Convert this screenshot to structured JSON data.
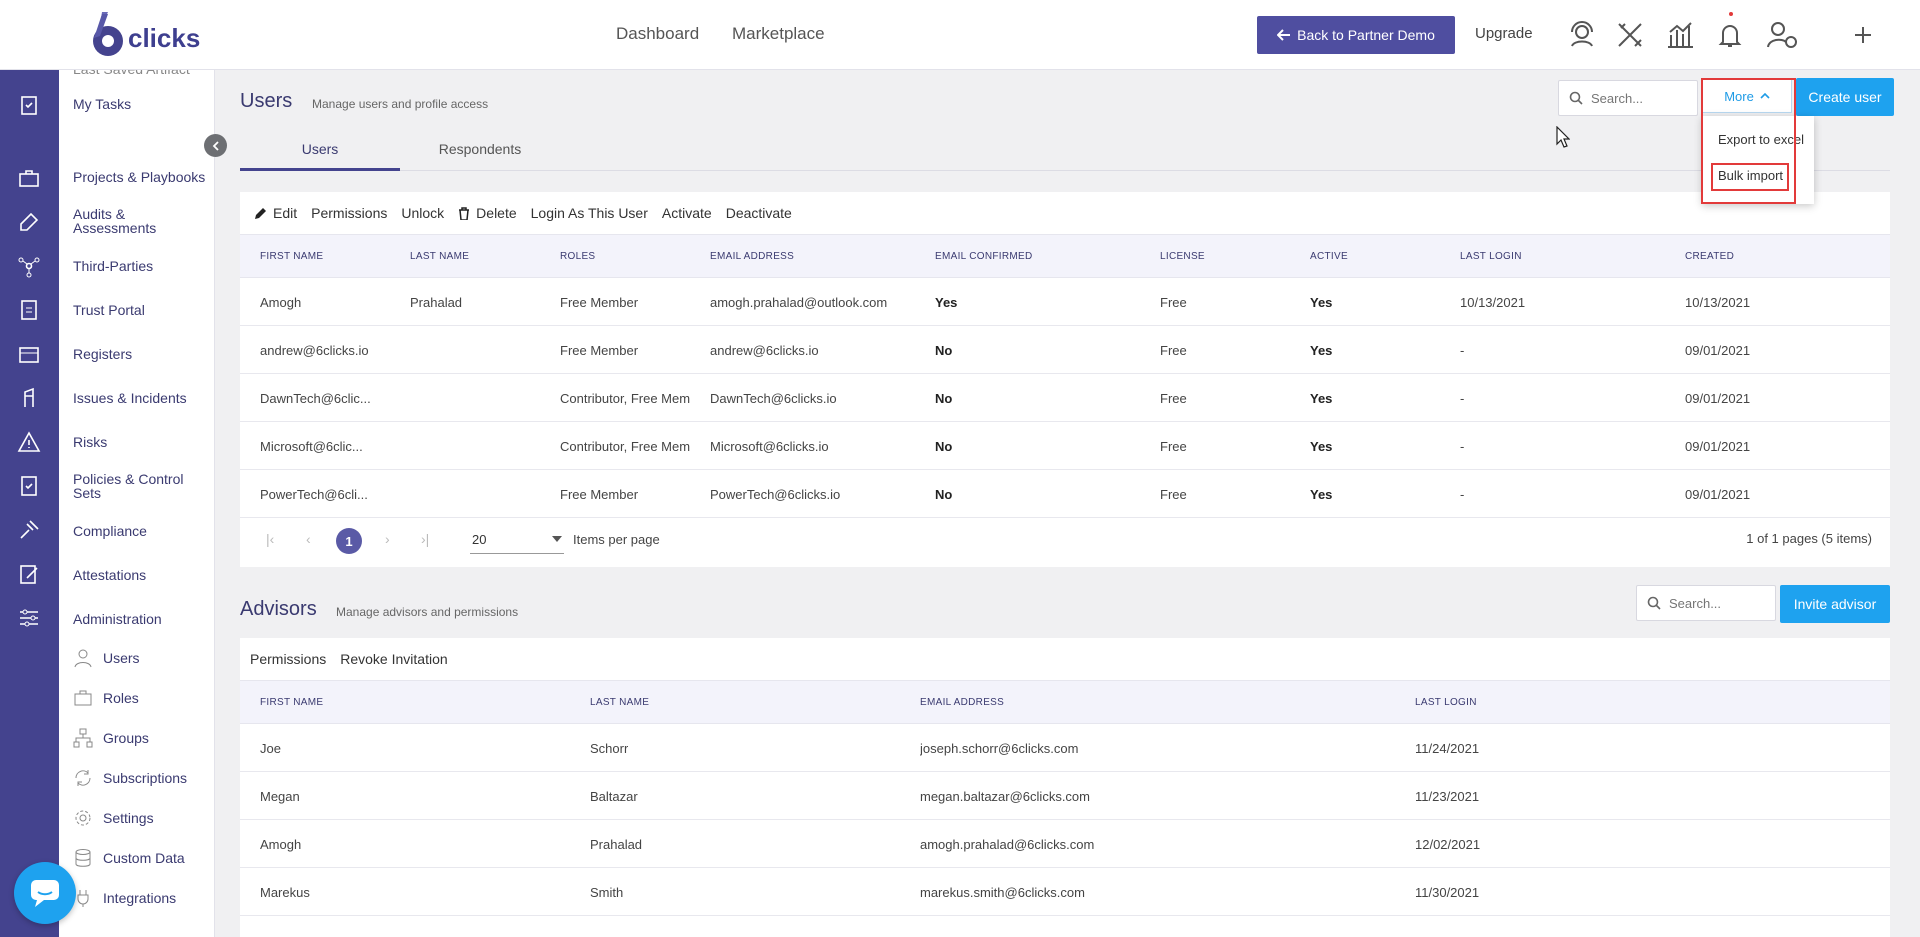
{
  "brand": {
    "name": "clicks",
    "accent": "#44438e",
    "primary": "#1ea2ef",
    "highlight": "#e23a3a"
  },
  "topnav": {
    "dashboard": "Dashboard",
    "marketplace": "Marketplace",
    "back_button": "Back to Partner Demo",
    "upgrade": "Upgrade"
  },
  "sidebar": {
    "cut_item": "Last Saved Artifact",
    "items": [
      "My Tasks",
      "Projects & Playbooks",
      "Audits & Assessments",
      "Third-Parties",
      "Trust Portal",
      "Registers",
      "Issues & Incidents",
      "Risks",
      "Policies & Control Sets",
      "Compliance",
      "Attestations",
      "Administration"
    ],
    "subitems": [
      "Users",
      "Roles",
      "Groups",
      "Subscriptions",
      "Settings",
      "Custom Data",
      "Integrations"
    ]
  },
  "users_section": {
    "title": "Users",
    "subtitle": "Manage users and profile access",
    "search_placeholder": "Search...",
    "more_label": "More",
    "create_label": "Create user",
    "more_menu": [
      "Export to excel",
      "Bulk import"
    ],
    "tabs": [
      "Users",
      "Respondents"
    ],
    "toolbar": [
      "Edit",
      "Permissions",
      "Unlock",
      "Delete",
      "Login As This User",
      "Activate",
      "Deactivate"
    ],
    "columns": [
      "FIRST NAME",
      "LAST NAME",
      "ROLES",
      "EMAIL ADDRESS",
      "EMAIL CONFIRMED",
      "LICENSE",
      "ACTIVE",
      "LAST LOGIN",
      "CREATED"
    ],
    "rows": [
      [
        "Amogh",
        "Prahalad",
        "Free Member",
        "amogh.prahalad@outlook.com",
        "Yes",
        "Free",
        "Yes",
        "10/13/2021",
        "10/13/2021"
      ],
      [
        "andrew@6clicks.io",
        "",
        "Free Member",
        "andrew@6clicks.io",
        "No",
        "Free",
        "Yes",
        "-",
        "09/01/2021"
      ],
      [
        "DawnTech@6clic...",
        "",
        "Contributor, Free Mem",
        "DawnTech@6clicks.io",
        "No",
        "Free",
        "Yes",
        "-",
        "09/01/2021"
      ],
      [
        "Microsoft@6clic...",
        "",
        "Contributor, Free Mem",
        "Microsoft@6clicks.io",
        "No",
        "Free",
        "Yes",
        "-",
        "09/01/2021"
      ],
      [
        "PowerTech@6cli...",
        "",
        "Free Member",
        "PowerTech@6clicks.io",
        "No",
        "Free",
        "Yes",
        "-",
        "09/01/2021"
      ]
    ],
    "pager": {
      "current_page": "1",
      "page_size": "20",
      "items_per_page": "Items per page",
      "summary": "1 of 1 pages (5 items)"
    }
  },
  "advisors_section": {
    "title": "Advisors",
    "subtitle": "Manage advisors and permissions",
    "search_placeholder": "Search...",
    "invite_label": "Invite advisor",
    "toolbar": [
      "Permissions",
      "Revoke Invitation"
    ],
    "columns": [
      "FIRST NAME",
      "LAST NAME",
      "EMAIL ADDRESS",
      "LAST LOGIN"
    ],
    "rows": [
      [
        "Joe",
        "Schorr",
        "joseph.schorr@6clicks.com",
        "11/24/2021"
      ],
      [
        "Megan",
        "Baltazar",
        "megan.baltazar@6clicks.com",
        "11/23/2021"
      ],
      [
        "Amogh",
        "Prahalad",
        "amogh.prahalad@6clicks.com",
        "12/02/2021"
      ],
      [
        "Marekus",
        "Smith",
        "marekus.smith@6clicks.com",
        "11/30/2021"
      ]
    ]
  }
}
